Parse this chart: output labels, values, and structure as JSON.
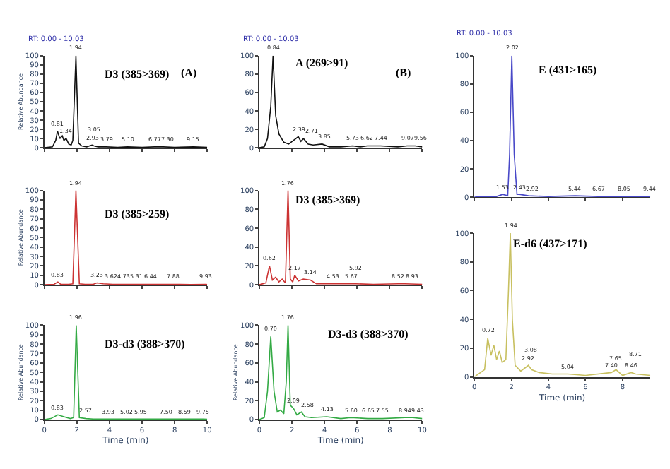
{
  "chart_data": [
    {
      "type": "line",
      "title": "D3 (385>369)",
      "ylabel": "Relative Abundance",
      "xlim": [
        0,
        10
      ],
      "xticks": [
        0,
        2,
        4,
        6,
        8,
        10
      ],
      "ylim": [
        0,
        100
      ],
      "yticks": [
        0,
        10,
        20,
        30,
        40,
        50,
        60,
        70,
        80,
        90,
        100
      ],
      "tick_labels": "y",
      "marker": "none",
      "series": [
        {
          "color": "#111111",
          "x": [
            0,
            0.5,
            0.7,
            0.81,
            0.95,
            1.1,
            1.2,
            1.34,
            1.5,
            1.65,
            1.75,
            1.94,
            2.1,
            2.3,
            2.6,
            2.93,
            3.05,
            3.3,
            3.79,
            4.5,
            5.1,
            6.0,
            6.77,
            7.3,
            8.0,
            9.15,
            10
          ],
          "values": [
            0,
            1,
            8,
            18,
            10,
            13,
            8,
            10,
            4,
            3,
            8,
            100,
            5,
            2,
            1,
            3,
            2,
            1,
            1,
            0.5,
            1,
            0.5,
            1,
            1,
            0.5,
            1,
            0.5
          ]
        }
      ],
      "annotations": [
        "RT: 0.00 - 10.03",
        "(A)",
        {
          "text": "0.81",
          "x": 0.81,
          "y": 18
        },
        {
          "text": "1.34",
          "x": 1.34,
          "y": 10
        },
        {
          "text": "1.94",
          "x": 1.94,
          "y": 100
        },
        {
          "text": "2.93",
          "x": 2.93,
          "y": 3
        },
        {
          "text": "3.05",
          "x": 3.05,
          "y": 2
        },
        {
          "text": "3.79",
          "x": 3.79,
          "y": 1
        },
        {
          "text": "5.10",
          "x": 5.1,
          "y": 1
        },
        {
          "text": "6.77",
          "x": 6.77,
          "y": 1
        },
        {
          "text": "7.30",
          "x": 7.3,
          "y": 1
        },
        {
          "text": "9.15",
          "x": 9.15,
          "y": 1
        }
      ]
    },
    {
      "type": "line",
      "title": "D3 (385>259)",
      "ylabel": "Relative Abundance",
      "xlim": [
        0,
        10
      ],
      "xticks": [
        0,
        2,
        4,
        6,
        8,
        10
      ],
      "ylim": [
        0,
        100
      ],
      "yticks": [
        0,
        10,
        20,
        30,
        40,
        50,
        60,
        70,
        80,
        90,
        100
      ],
      "tick_labels": "y",
      "marker": "none",
      "series": [
        {
          "color": "#cc3333",
          "x": [
            0,
            0.6,
            0.83,
            1.0,
            1.5,
            1.75,
            1.94,
            2.15,
            2.5,
            3.0,
            3.23,
            3.62,
            4.2,
            4.73,
            5.31,
            6.44,
            7.88,
            9.0,
            9.93,
            10
          ],
          "values": [
            0,
            0.5,
            3,
            0.5,
            0.5,
            1,
            100,
            1,
            0.5,
            0.5,
            2,
            1,
            0.5,
            0.5,
            0.5,
            0.5,
            0.5,
            0.3,
            0.5,
            0.3
          ]
        }
      ],
      "annotations": [
        {
          "text": "0.83",
          "x": 0.83,
          "y": 3
        },
        {
          "text": "1.94",
          "x": 1.94,
          "y": 100
        },
        {
          "text": "3.23",
          "x": 3.23,
          "y": 2
        },
        {
          "text": "3.62",
          "x": 3.62,
          "y": 1
        },
        {
          "text": "4.73",
          "x": 4.73,
          "y": 0.5
        },
        {
          "text": "5.31",
          "x": 5.31,
          "y": 0.5
        },
        {
          "text": "6.44",
          "x": 6.44,
          "y": 0.5
        },
        {
          "text": "7.88",
          "x": 7.88,
          "y": 0.5
        },
        {
          "text": "9.93",
          "x": 9.93,
          "y": 0.5
        }
      ]
    },
    {
      "type": "line",
      "title": "D3-d3 (388>370)",
      "ylabel": "Relative Abundance",
      "xlabel": "Time (min)",
      "xlim": [
        0,
        10
      ],
      "xticks": [
        0,
        2,
        4,
        6,
        8,
        10
      ],
      "ylim": [
        0,
        100
      ],
      "yticks": [
        0,
        10,
        20,
        30,
        40,
        50,
        60,
        70,
        80,
        90,
        100
      ],
      "marker": "none",
      "series": [
        {
          "color": "#33aa44",
          "x": [
            0,
            0.4,
            0.83,
            1.2,
            1.6,
            1.8,
            1.96,
            2.15,
            2.57,
            3.0,
            3.93,
            5.02,
            5.95,
            7.5,
            8.59,
            9.75,
            10
          ],
          "values": [
            0,
            1,
            5,
            3,
            1,
            2,
            100,
            2,
            1,
            0.5,
            0.5,
            0.5,
            0.5,
            0.5,
            0.5,
            0.5,
            0.3
          ]
        }
      ],
      "annotations": [
        {
          "text": "0.83",
          "x": 0.83,
          "y": 5
        },
        {
          "text": "1.96",
          "x": 1.96,
          "y": 100
        },
        {
          "text": "2.57",
          "x": 2.57,
          "y": 1
        },
        {
          "text": "3.93",
          "x": 3.93,
          "y": 0.5
        },
        {
          "text": "5.02",
          "x": 5.02,
          "y": 0.5
        },
        {
          "text": "5.95",
          "x": 5.95,
          "y": 0.5
        },
        {
          "text": "7.50",
          "x": 7.5,
          "y": 0.5
        },
        {
          "text": "8.59",
          "x": 8.59,
          "y": 0.5
        },
        {
          "text": "9.75",
          "x": 9.75,
          "y": 0.5
        }
      ]
    },
    {
      "type": "line",
      "title": "A (269>91)",
      "xlim": [
        0,
        10
      ],
      "xticks": [
        0,
        2,
        4,
        6,
        8,
        10
      ],
      "ylim": [
        0,
        100
      ],
      "yticks": [
        0,
        20,
        40,
        60,
        80,
        100
      ],
      "tick_labels": "y",
      "marker": "none",
      "series": [
        {
          "color": "#111111",
          "x": [
            0,
            0.3,
            0.5,
            0.7,
            0.84,
            1.0,
            1.2,
            1.5,
            1.8,
            2.1,
            2.39,
            2.55,
            2.71,
            3.0,
            3.3,
            3.85,
            4.3,
            5.0,
            5.73,
            6.2,
            6.62,
            7.44,
            8.5,
            9.07,
            9.56,
            10
          ],
          "values": [
            0,
            1,
            10,
            45,
            100,
            35,
            15,
            6,
            4,
            8,
            12,
            7,
            10,
            4,
            3,
            4,
            1,
            1,
            2,
            1,
            2,
            2,
            1,
            2,
            2,
            1
          ]
        }
      ],
      "annotations": [
        "RT: 0.00 - 10.03",
        "(B)",
        {
          "text": "0.84",
          "x": 0.84,
          "y": 100
        },
        {
          "text": "2.39",
          "x": 2.39,
          "y": 12
        },
        {
          "text": "2.71",
          "x": 2.71,
          "y": 10
        },
        {
          "text": "3.85",
          "x": 3.85,
          "y": 4
        },
        {
          "text": "5.73",
          "x": 5.73,
          "y": 2
        },
        {
          "text": "6.62",
          "x": 6.62,
          "y": 2
        },
        {
          "text": "7.44",
          "x": 7.44,
          "y": 2
        },
        {
          "text": "9.07",
          "x": 9.07,
          "y": 2
        },
        {
          "text": "9.56",
          "x": 9.56,
          "y": 2
        }
      ]
    },
    {
      "type": "line",
      "title": "D3 (385>369)",
      "xlim": [
        0,
        10
      ],
      "xticks": [
        0,
        2,
        4,
        6,
        8,
        10
      ],
      "ylim": [
        0,
        100
      ],
      "yticks": [
        0,
        20,
        40,
        60,
        80,
        100
      ],
      "tick_labels": "y",
      "marker": "none",
      "series": [
        {
          "color": "#cc3333",
          "x": [
            0,
            0.4,
            0.62,
            0.8,
            1.0,
            1.2,
            1.4,
            1.6,
            1.76,
            1.9,
            2.05,
            2.17,
            2.4,
            2.7,
            3.14,
            3.5,
            4.53,
            5.67,
            5.92,
            7.0,
            8.52,
            8.93,
            10
          ],
          "values": [
            0,
            2,
            20,
            5,
            8,
            3,
            6,
            2,
            100,
            6,
            3,
            10,
            4,
            6,
            5,
            1,
            1,
            1,
            1,
            0.5,
            1,
            1,
            0.5
          ]
        }
      ],
      "annotations": [
        {
          "text": "0.62",
          "x": 0.62,
          "y": 20
        },
        {
          "text": "1.76",
          "x": 1.76,
          "y": 100
        },
        {
          "text": "2.17",
          "x": 2.17,
          "y": 10
        },
        {
          "text": "3.14",
          "x": 3.14,
          "y": 5
        },
        {
          "text": "4.53",
          "x": 4.53,
          "y": 1
        },
        {
          "text": "5.67",
          "x": 5.67,
          "y": 1
        },
        {
          "text": "5.92",
          "x": 5.92,
          "y": 1
        },
        {
          "text": "8.52",
          "x": 8.52,
          "y": 1
        },
        {
          "text": "8.93",
          "x": 8.93,
          "y": 1
        }
      ]
    },
    {
      "type": "line",
      "title": "D3-d3 (388>370)",
      "ylabel": "Relative Abundance",
      "xlabel": "Time (min)",
      "xlim": [
        0,
        10
      ],
      "xticks": [
        0,
        2,
        4,
        6,
        8,
        10
      ],
      "ylim": [
        0,
        100
      ],
      "yticks": [
        0,
        20,
        40,
        60,
        80,
        100
      ],
      "marker": "none",
      "series": [
        {
          "color": "#33aa44",
          "x": [
            0,
            0.3,
            0.5,
            0.7,
            0.9,
            1.1,
            1.3,
            1.5,
            1.65,
            1.76,
            1.9,
            2.09,
            2.3,
            2.58,
            2.8,
            3.2,
            4.13,
            5.0,
            5.6,
            6.65,
            7.55,
            8.94,
            9.43,
            10
          ],
          "values": [
            0,
            2,
            30,
            88,
            30,
            8,
            10,
            6,
            40,
            100,
            15,
            12,
            5,
            8,
            3,
            2,
            3,
            1,
            2,
            1,
            1,
            2,
            2,
            1
          ]
        }
      ],
      "annotations": [
        {
          "text": "0.70",
          "x": 0.7,
          "y": 88
        },
        {
          "text": "1.76",
          "x": 1.76,
          "y": 100
        },
        {
          "text": "2.09",
          "x": 2.09,
          "y": 12
        },
        {
          "text": "2.58",
          "x": 2.58,
          "y": 8
        },
        {
          "text": "4.13",
          "x": 4.13,
          "y": 3
        },
        {
          "text": "5.60",
          "x": 5.6,
          "y": 2
        },
        {
          "text": "6.65",
          "x": 6.65,
          "y": 1
        },
        {
          "text": "7.55",
          "x": 7.55,
          "y": 1
        },
        {
          "text": "8.94",
          "x": 8.94,
          "y": 2
        },
        {
          "text": "9.43",
          "x": 9.43,
          "y": 2
        }
      ]
    },
    {
      "type": "line",
      "title": "E (431>165)",
      "xlim": [
        0,
        9.5
      ],
      "xticks": [
        0,
        2,
        4,
        6,
        8
      ],
      "ylim": [
        0,
        100
      ],
      "yticks": [
        0,
        20,
        40,
        60,
        80,
        100
      ],
      "tick_labels": "y",
      "marker": "none",
      "series": [
        {
          "color": "#4848c8",
          "x": [
            0,
            0.5,
            1.2,
            1.53,
            1.8,
            1.9,
            2.02,
            2.15,
            2.3,
            2.43,
            2.92,
            4.0,
            5.44,
            6.67,
            8.05,
            9.44,
            9.5
          ],
          "values": [
            0,
            0.5,
            0.5,
            2,
            1,
            30,
            100,
            30,
            2,
            2,
            1,
            0.5,
            1,
            0.5,
            0.5,
            0.5,
            0.5
          ]
        }
      ],
      "annotations": [
        "RT: 0.00 - 10.03",
        {
          "text": "1.53",
          "x": 1.53,
          "y": 2
        },
        {
          "text": "2.02",
          "x": 2.02,
          "y": 100
        },
        {
          "text": "2.43",
          "x": 2.43,
          "y": 2
        },
        {
          "text": "2.92",
          "x": 2.92,
          "y": 1
        },
        {
          "text": "5.44",
          "x": 5.44,
          "y": 1
        },
        {
          "text": "6.67",
          "x": 6.67,
          "y": 0.5
        },
        {
          "text": "8.05",
          "x": 8.05,
          "y": 0.5
        },
        {
          "text": "9.44",
          "x": 9.44,
          "y": 0.5
        }
      ]
    },
    {
      "type": "line",
      "title": "E-d6 (437>171)",
      "xlabel": "Time (min)",
      "xlim": [
        0,
        9.5
      ],
      "xticks": [
        0,
        2,
        4,
        6,
        8
      ],
      "ylim": [
        0,
        100
      ],
      "yticks": [
        0,
        20,
        40,
        60,
        80,
        100
      ],
      "marker": "none",
      "series": [
        {
          "color": "#c8c060",
          "x": [
            0,
            0.55,
            0.72,
            0.9,
            1.05,
            1.2,
            1.35,
            1.5,
            1.7,
            1.84,
            1.94,
            2.05,
            2.2,
            2.5,
            2.92,
            3.08,
            3.5,
            4.2,
            5.04,
            6.0,
            7.4,
            7.65,
            8.0,
            8.46,
            8.71,
            9.5
          ],
          "values": [
            0,
            5,
            27,
            15,
            22,
            12,
            18,
            10,
            12,
            60,
            100,
            40,
            8,
            4,
            8,
            5,
            3,
            2,
            2,
            1,
            3,
            5,
            1,
            3,
            2,
            1
          ]
        }
      ],
      "annotations": [
        {
          "text": "0.72",
          "x": 0.72,
          "y": 27
        },
        {
          "text": "1.94",
          "x": 1.94,
          "y": 100
        },
        {
          "text": "2.92",
          "x": 2.92,
          "y": 8
        },
        {
          "text": "3.08",
          "x": 3.08,
          "y": 5
        },
        {
          "text": "5.04",
          "x": 5.04,
          "y": 2
        },
        {
          "text": "7.40",
          "x": 7.4,
          "y": 3
        },
        {
          "text": "7.65",
          "x": 7.65,
          "y": 5
        },
        {
          "text": "8.46",
          "x": 8.46,
          "y": 3
        },
        {
          "text": "8.71",
          "x": 8.71,
          "y": 2
        }
      ]
    }
  ]
}
